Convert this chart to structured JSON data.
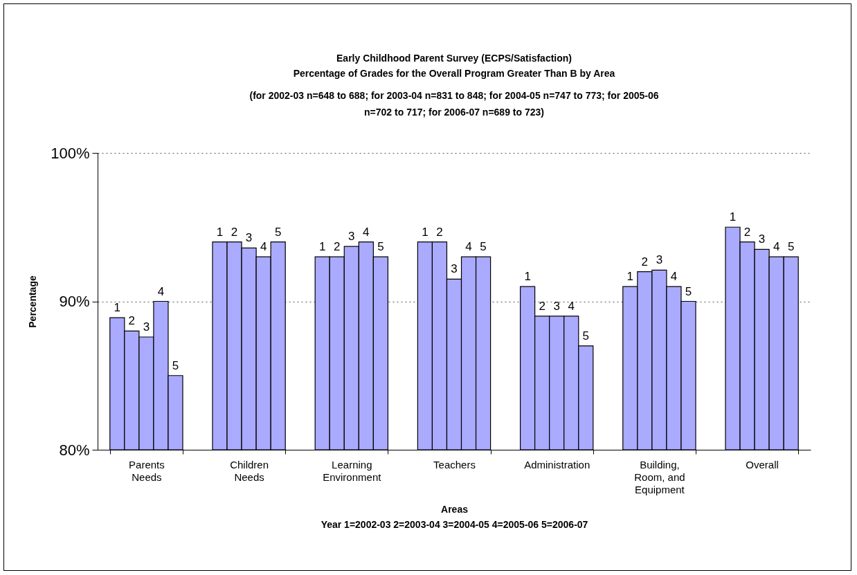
{
  "chart_data": {
    "type": "bar",
    "title": "Early Childhood Parent Survey (ECPS/Satisfaction)\nPercentage of Grades for the Overall Program Greater Than B by Area",
    "subtitle": "(for 2002-03 n=648 to 688; for 2003-04 n=831 to 848;  for 2004-05 n=747 to 773; for 2005-06\nn=702 to 717; for 2006-07 n=689 to 723)",
    "xlabel": "Areas",
    "ylabel": "Percentage",
    "annotations": [
      "Year 1=2002-03  2=2003-04  3=2004-05  4=2005-06  5=2006-07"
    ],
    "categories": [
      "Parents\nNeeds",
      "Children\nNeeds",
      "Learning\nEnvironment",
      "Teachers",
      "Administration",
      "Building,\nRoom, and\nEquipment",
      "Overall"
    ],
    "series": [
      {
        "name": "1",
        "color": "#aaaaff",
        "values": [
          88.9,
          94,
          93,
          94,
          91,
          91,
          95
        ]
      },
      {
        "name": "2",
        "color": "#aaaaff",
        "values": [
          88,
          94,
          93,
          94,
          89,
          92,
          94
        ]
      },
      {
        "name": "3",
        "color": "#aaaaff",
        "values": [
          87.6,
          93.6,
          93.7,
          91.5,
          89,
          92.1,
          93.5
        ]
      },
      {
        "name": "4",
        "color": "#aaaaff",
        "values": [
          90,
          93,
          94,
          93,
          89,
          91,
          93
        ]
      },
      {
        "name": "5",
        "color": "#aaaaff",
        "values": [
          85,
          94,
          93,
          93,
          87,
          90,
          93
        ]
      }
    ],
    "ylim": [
      80,
      100
    ],
    "yticks": [
      {
        "value": 80,
        "label": "80%"
      },
      {
        "value": 90,
        "label": "90%"
      },
      {
        "value": 100,
        "label": "100%"
      }
    ],
    "grid": "y",
    "line_style": "dotted",
    "legend": false
  }
}
